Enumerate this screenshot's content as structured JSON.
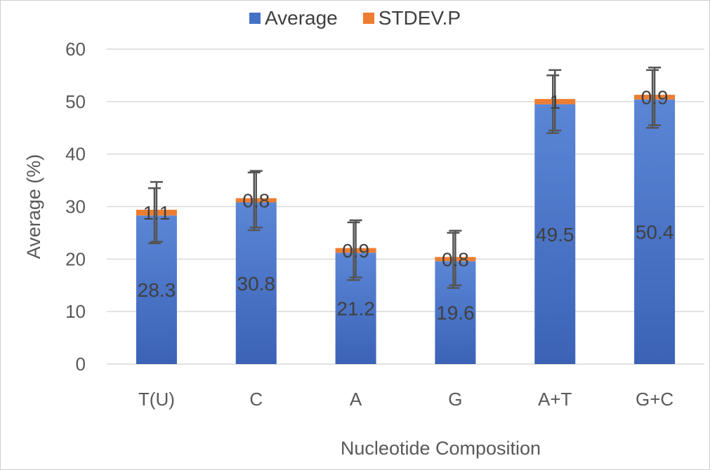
{
  "chart_data": {
    "type": "bar",
    "stacked": true,
    "title": "",
    "xlabel": "Nucleotide Composition",
    "ylabel": "Average (%)",
    "ylim": [
      0,
      60
    ],
    "yticks": [
      0,
      10,
      20,
      30,
      40,
      50,
      60
    ],
    "grid": true,
    "legend_position": "top-center",
    "categories": [
      "T(U)",
      "C",
      "A",
      "G",
      "A+T",
      "G+C"
    ],
    "series": [
      {
        "name": "Average",
        "color": "#4472c4",
        "values": [
          28.3,
          30.8,
          21.2,
          19.6,
          49.5,
          50.4
        ],
        "labels": [
          "28.3",
          "30.8",
          "21.2",
          "19.6",
          "49.5",
          "50.4"
        ]
      },
      {
        "name": "STDEV.P",
        "color": "#ed7d31",
        "values": [
          1.1,
          0.8,
          0.9,
          0.8,
          1,
          0.9
        ],
        "labels": [
          "1.1",
          "0.8",
          "0.9",
          "0.8",
          "1",
          "0.9"
        ]
      }
    ],
    "error_bars": [
      {
        "series": "Average",
        "low": [
          23,
          25.5,
          16,
          14.5,
          44,
          45
        ],
        "high": [
          33.5,
          36.5,
          27,
          25,
          55,
          56
        ]
      },
      {
        "series": "STDEV.P",
        "low": [
          23.3,
          26,
          16.5,
          15,
          44.5,
          45.5
        ],
        "high": [
          34.7,
          36.8,
          27.4,
          25.4,
          56,
          56.5
        ]
      }
    ]
  }
}
